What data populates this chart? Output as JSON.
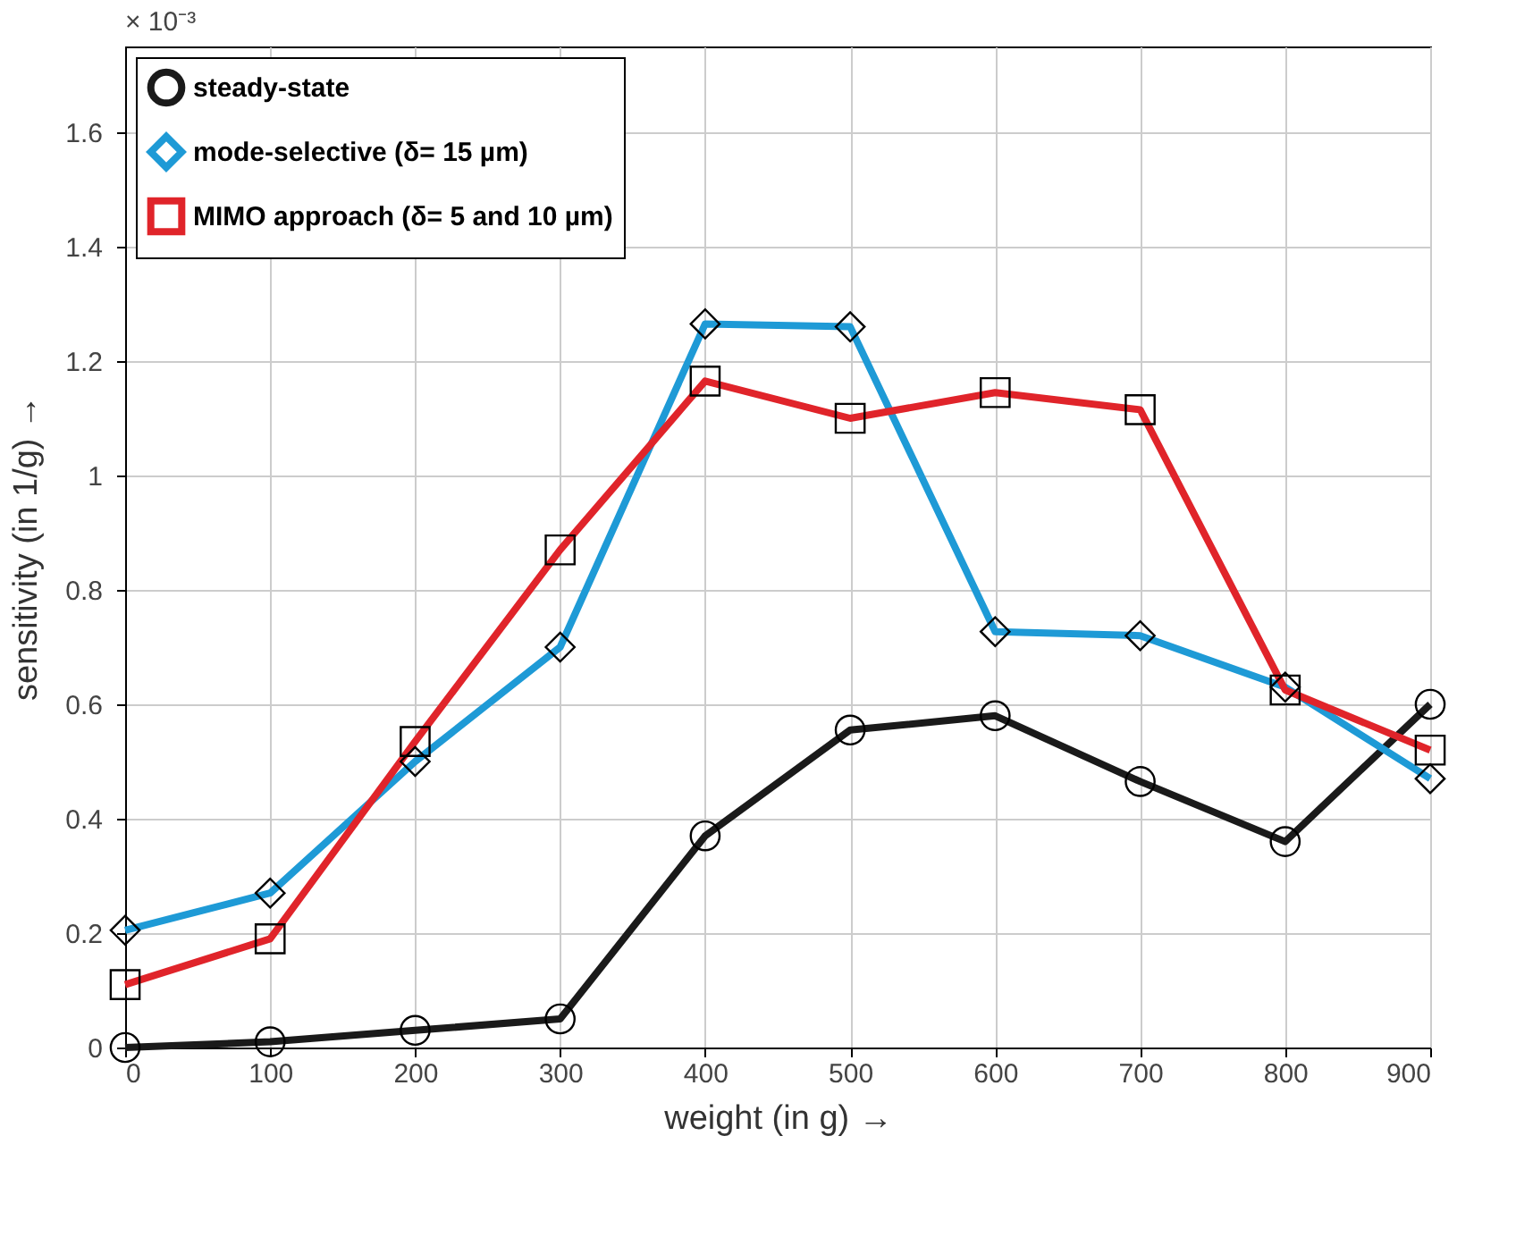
{
  "chart_data": {
    "type": "line",
    "xlabel": "weight    (in g)   →",
    "ylabel": "sensitivity    (in 1/g)   →",
    "annotations": [
      "× 10⁻³"
    ],
    "x": [
      0,
      100,
      200,
      300,
      400,
      500,
      600,
      700,
      800,
      900
    ],
    "xlim": [
      0,
      900
    ],
    "xticks": [
      0,
      100,
      200,
      300,
      400,
      500,
      600,
      700,
      800,
      900
    ],
    "ylim": [
      0,
      1.75
    ],
    "yticks": [
      0,
      0.2,
      0.4,
      0.6,
      0.8,
      1,
      1.2,
      1.4,
      1.6
    ],
    "grid": true,
    "legend": "top left",
    "line_style": "solid",
    "series": [
      {
        "name": "steady-state",
        "color": "#1a1a1a",
        "marker": "circle",
        "values": [
          0,
          0.01,
          0.03,
          0.05,
          0.37,
          0.555,
          0.58,
          0.465,
          0.36,
          0.6
        ]
      },
      {
        "name": "mode-selective (δ= 15 µm)",
        "color": "#1e9ad6",
        "marker": "diamond",
        "values": [
          0.205,
          0.27,
          0.5,
          0.7,
          1.265,
          1.26,
          0.727,
          0.72,
          0.63,
          0.47
        ]
      },
      {
        "name": "MIMO approach (δ= 5 and 10 µm)",
        "color": "#e0242a",
        "marker": "square",
        "values": [
          0.11,
          0.19,
          0.535,
          0.87,
          1.165,
          1.1,
          1.145,
          1.115,
          0.625,
          0.52
        ]
      }
    ]
  }
}
